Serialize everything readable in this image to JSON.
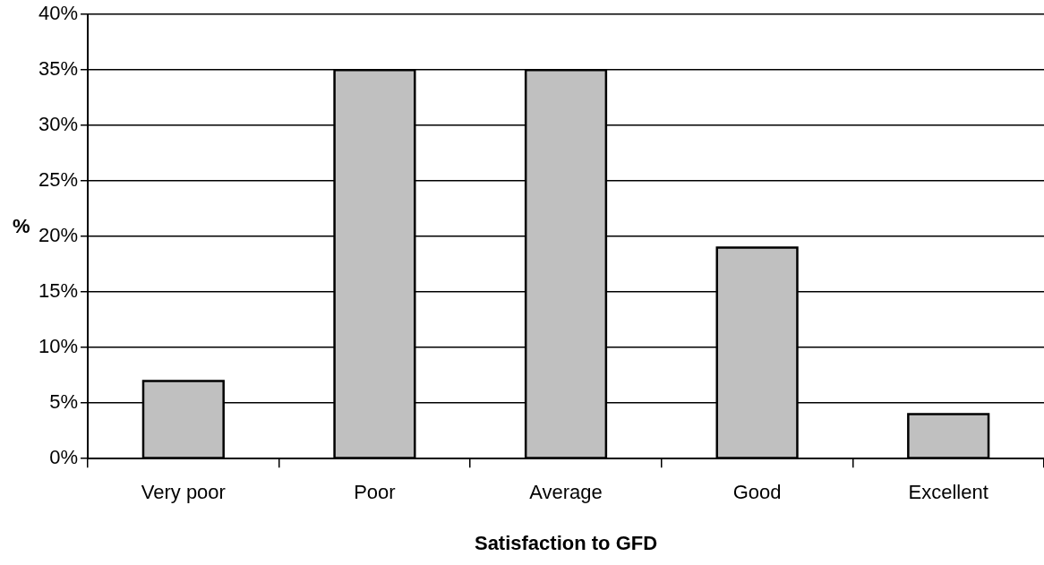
{
  "chart_data": {
    "type": "bar",
    "xlabel": "Satisfaction to GFD",
    "ylabel": "%",
    "categories": [
      "Very poor",
      "Poor",
      "Average",
      "Good",
      "Excellent"
    ],
    "values": [
      7,
      35,
      35,
      19,
      4
    ],
    "color": "#c0c0c0",
    "ylim": [
      0,
      40
    ],
    "yticks": [
      {
        "value": 0,
        "label": "0%"
      },
      {
        "value": 5,
        "label": "5%"
      },
      {
        "value": 10,
        "label": "10%"
      },
      {
        "value": 15,
        "label": "15%"
      },
      {
        "value": 20,
        "label": "20%"
      },
      {
        "value": 25,
        "label": "25%"
      },
      {
        "value": 30,
        "label": "30%"
      },
      {
        "value": 35,
        "label": "35%"
      },
      {
        "value": 40,
        "label": "40%"
      }
    ],
    "grid": "y",
    "legend": false
  }
}
